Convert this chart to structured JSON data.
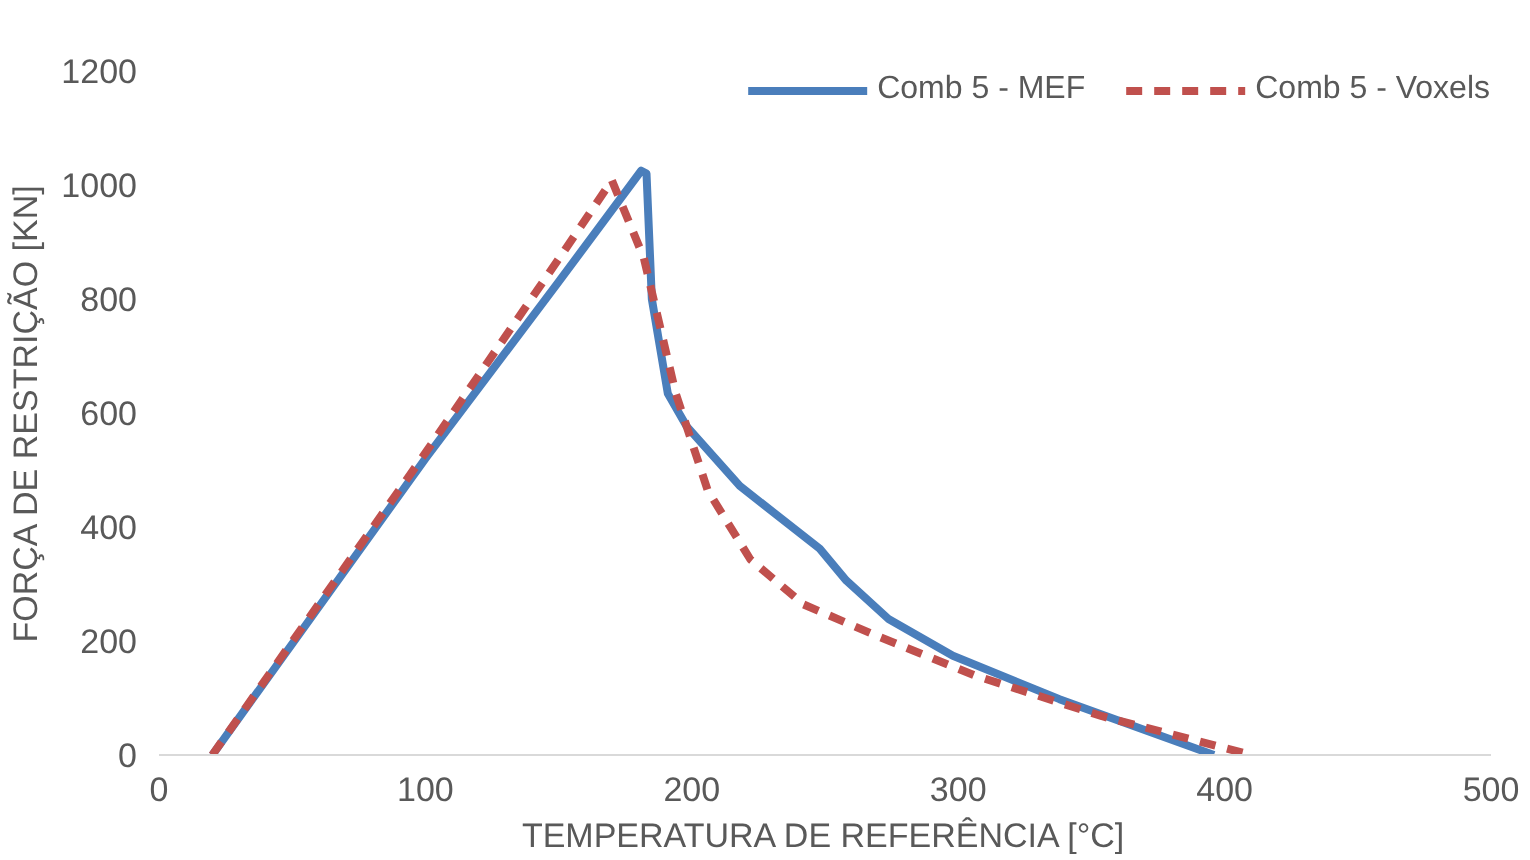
{
  "chart_data": {
    "type": "line",
    "xlabel": "TEMPERATURA DE REFERÊNCIA [°C]",
    "ylabel": "FORÇA DE RESTRIÇÃO [KN]",
    "xlim": [
      0,
      500
    ],
    "xticks": [
      0,
      100,
      200,
      300,
      400,
      500
    ],
    "ylim": [
      0,
      1200
    ],
    "yticks": [
      0,
      200,
      400,
      600,
      800,
      1000,
      1200
    ],
    "grid": false,
    "legend": "top right",
    "marker": "none",
    "series": [
      {
        "name": "Comb 5 - MEF",
        "color": "#4a7ebb",
        "line_style": "solid",
        "x": [
          20,
          100,
          150,
          181,
          183,
          185,
          191,
          198,
          218,
          248,
          258,
          274,
          298,
          338,
          396
        ],
        "values": [
          0,
          520,
          830,
          1025,
          1020,
          800,
          634,
          577,
          472,
          362,
          306,
          238,
          174,
          98,
          0
        ]
      },
      {
        "name": "Comb 5 - Voxels",
        "color": "#c0504d",
        "line_style": "dashed",
        "x": [
          20,
          100,
          150,
          170,
          182,
          194,
          206,
          222,
          242,
          270,
          306,
          354,
          410
        ],
        "values": [
          0,
          530,
          870,
          1008,
          872,
          634,
          464,
          343,
          264,
          208,
          140,
          68,
          0
        ]
      }
    ]
  }
}
